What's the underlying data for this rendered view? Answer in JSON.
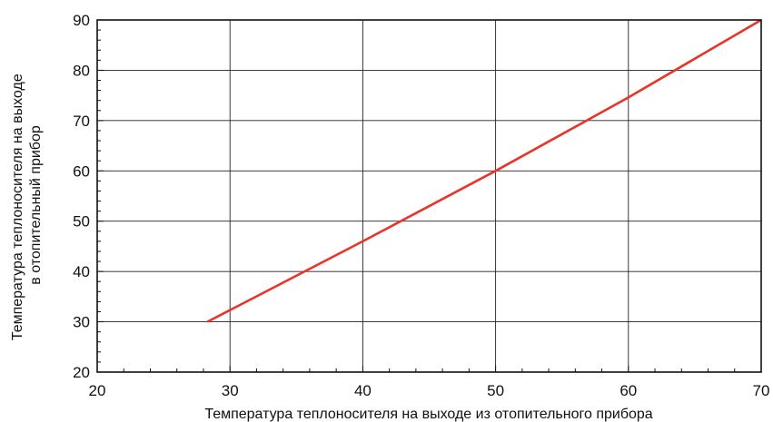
{
  "chart_data": {
    "type": "line",
    "title": "",
    "xlabel": "Температура теплоносителя на выходе из отопительного прибора",
    "ylabel": [
      "Температура теплоносителя на выходе",
      "в отопительный прибор"
    ],
    "xlim": [
      20,
      70
    ],
    "ylim": [
      20,
      90
    ],
    "x_ticks": [
      20,
      30,
      40,
      50,
      60,
      70
    ],
    "y_ticks": [
      20,
      30,
      40,
      50,
      60,
      70,
      80,
      90
    ],
    "x_minor_step": 2,
    "y_minor_step": 2,
    "grid": true,
    "series": [
      {
        "color": "#e8342a",
        "x": [
          28.3,
          40,
          50,
          60,
          70
        ],
        "y": [
          30,
          46,
          60,
          74.6,
          90
        ]
      }
    ]
  }
}
